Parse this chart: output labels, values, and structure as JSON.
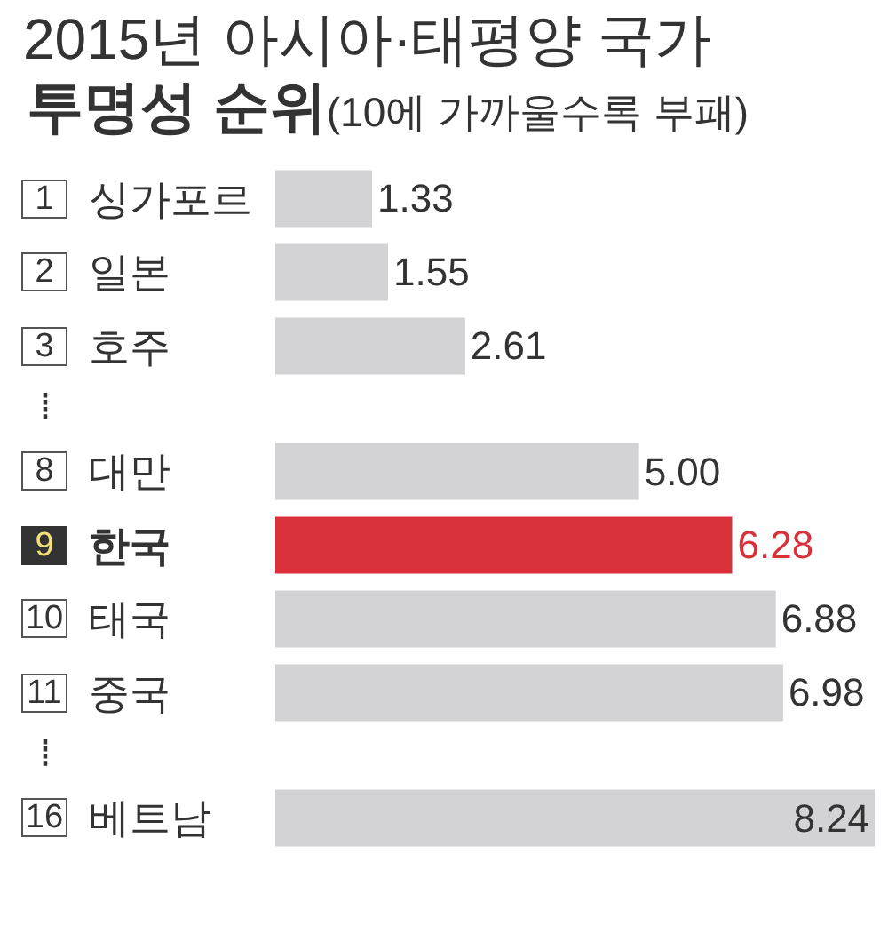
{
  "chart_data": {
    "type": "bar",
    "orientation": "horizontal",
    "title": "2015년 아시아·태평양 국가\n투명성 순위(10에 가까울수록 부패)",
    "categories": [
      "1 싱가포르",
      "2 일본",
      "3 호주",
      "⁞",
      "8 대만",
      "9 한국",
      "10 태국",
      "11 중국",
      "⁞",
      "16 베트남"
    ],
    "values": [
      1.33,
      1.55,
      2.61,
      null,
      5.0,
      6.28,
      6.88,
      6.98,
      null,
      8.24
    ],
    "value_labels": [
      "1.33",
      "1.55",
      "2.61",
      null,
      "5.00",
      "6.28",
      "6.88",
      "6.98",
      null,
      "8.24"
    ],
    "colors": [
      "#d3d3d5",
      "#d3d3d5",
      "#d3d3d5",
      null,
      "#d3d3d5",
      "#d8313a",
      "#d3d3d5",
      "#d3d3d5",
      null,
      "#d3d3d5"
    ],
    "xlim": [
      0,
      8.3
    ],
    "tick_labels": "y"
  }
}
